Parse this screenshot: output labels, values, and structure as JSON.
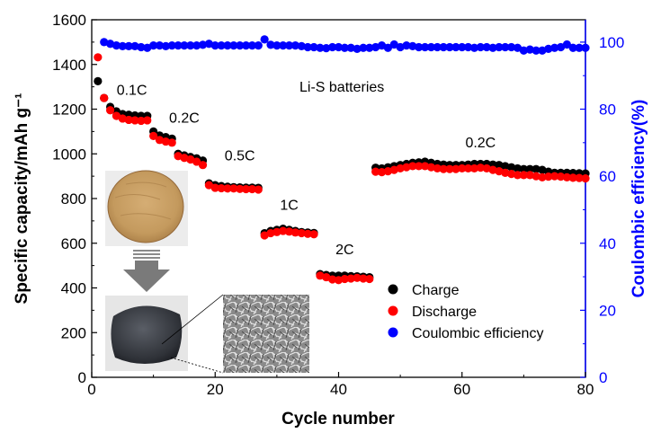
{
  "chart_data": {
    "type": "scatter",
    "title": "",
    "xlabel": "Cycle number",
    "ylabel_left": "Specific capacity/mAh g⁻¹",
    "ylabel_right": "Coulombic efficiency(%)",
    "xlim": [
      0,
      80
    ],
    "ylim_left": [
      0,
      1600
    ],
    "ylim_right": [
      0,
      106.67
    ],
    "x_ticks": [
      0,
      20,
      40,
      60,
      80
    ],
    "y_left_ticks": [
      0,
      200,
      400,
      600,
      800,
      1000,
      1200,
      1400,
      1600
    ],
    "y_right_ticks": [
      0,
      20,
      40,
      60,
      80,
      100
    ],
    "legend_position": "bottom-right",
    "annotations": {
      "system": "Li-S batteries",
      "rates": [
        {
          "label": "0.1C",
          "x": 6.5,
          "y": 1265
        },
        {
          "label": "0.2C",
          "x": 15,
          "y": 1140
        },
        {
          "label": "0.5C",
          "x": 24,
          "y": 970
        },
        {
          "label": "1C",
          "x": 32,
          "y": 750
        },
        {
          "label": "2C",
          "x": 41,
          "y": 550
        },
        {
          "label": "0.2C",
          "x": 63,
          "y": 1030
        }
      ]
    },
    "series": [
      {
        "name": "Charge",
        "color": "#000000",
        "axis": "left",
        "x": [
          1,
          2,
          3,
          4,
          5,
          6,
          7,
          8,
          9,
          10,
          11,
          12,
          13,
          14,
          15,
          16,
          17,
          18,
          19,
          20,
          21,
          22,
          23,
          24,
          25,
          26,
          27,
          28,
          29,
          30,
          31,
          32,
          33,
          34,
          35,
          36,
          37,
          38,
          39,
          40,
          41,
          42,
          43,
          44,
          45,
          46,
          47,
          48,
          49,
          50,
          51,
          52,
          53,
          54,
          55,
          56,
          57,
          58,
          59,
          60,
          61,
          62,
          63,
          64,
          65,
          66,
          67,
          68,
          69,
          70,
          71,
          72,
          73,
          74,
          75,
          76,
          77,
          78,
          79,
          80
        ],
        "y": [
          1325,
          1250,
          1210,
          1190,
          1178,
          1175,
          1172,
          1170,
          1170,
          1100,
          1082,
          1075,
          1068,
          1000,
          993,
          986,
          980,
          970,
          868,
          860,
          856,
          853,
          851,
          850,
          849,
          849,
          848,
          645,
          655,
          660,
          665,
          660,
          655,
          650,
          648,
          646,
          462,
          458,
          455,
          455,
          455,
          453,
          452,
          450,
          448,
          938,
          935,
          940,
          945,
          950,
          955,
          960,
          962,
          965,
          960,
          955,
          952,
          950,
          950,
          950,
          952,
          955,
          955,
          955,
          952,
          950,
          945,
          940,
          935,
          932,
          932,
          932,
          928,
          920,
          915,
          915,
          915,
          914,
          913,
          912
        ]
      },
      {
        "name": "Discharge",
        "color": "#ff0000",
        "axis": "left",
        "x": [
          1,
          2,
          3,
          4,
          5,
          6,
          7,
          8,
          9,
          10,
          11,
          12,
          13,
          14,
          15,
          16,
          17,
          18,
          19,
          20,
          21,
          22,
          23,
          24,
          25,
          26,
          27,
          28,
          29,
          30,
          31,
          32,
          33,
          34,
          35,
          36,
          37,
          38,
          39,
          40,
          41,
          42,
          43,
          44,
          45,
          46,
          47,
          48,
          49,
          50,
          51,
          52,
          53,
          54,
          55,
          56,
          57,
          58,
          59,
          60,
          61,
          62,
          63,
          64,
          65,
          66,
          67,
          68,
          69,
          70,
          71,
          72,
          73,
          74,
          75,
          76,
          77,
          78,
          79,
          80
        ],
        "y": [
          1432,
          1250,
          1195,
          1170,
          1158,
          1152,
          1150,
          1148,
          1150,
          1080,
          1062,
          1055,
          1050,
          990,
          982,
          975,
          965,
          950,
          860,
          848,
          846,
          845,
          845,
          843,
          842,
          842,
          840,
          635,
          645,
          650,
          655,
          652,
          648,
          645,
          642,
          640,
          455,
          448,
          438,
          435,
          440,
          442,
          445,
          442,
          440,
          920,
          918,
          922,
          928,
          935,
          940,
          945,
          945,
          945,
          940,
          935,
          932,
          932,
          932,
          935,
          935,
          935,
          938,
          935,
          928,
          922,
          915,
          910,
          905,
          905,
          905,
          900,
          895,
          898,
          900,
          898,
          895,
          893,
          892,
          890
        ]
      },
      {
        "name": "Coulombic efficiency",
        "color": "#0000ff",
        "axis": "right",
        "x": [
          2,
          3,
          4,
          5,
          6,
          7,
          8,
          9,
          10,
          11,
          12,
          13,
          14,
          15,
          16,
          17,
          18,
          19,
          20,
          21,
          22,
          23,
          24,
          25,
          26,
          27,
          28,
          29,
          30,
          31,
          32,
          33,
          34,
          35,
          36,
          37,
          38,
          39,
          40,
          41,
          42,
          43,
          44,
          45,
          46,
          47,
          48,
          49,
          50,
          51,
          52,
          53,
          54,
          55,
          56,
          57,
          58,
          59,
          60,
          61,
          62,
          63,
          64,
          65,
          66,
          67,
          68,
          69,
          70,
          71,
          72,
          73,
          74,
          75,
          76,
          77,
          78,
          79,
          80
        ],
        "y": [
          100.0,
          99.5,
          99.0,
          98.8,
          98.8,
          98.8,
          98.5,
          98.3,
          99.0,
          99.0,
          98.8,
          99.0,
          99.0,
          99.0,
          99.0,
          99.0,
          99.2,
          99.5,
          99.0,
          99.0,
          99.0,
          99.0,
          99.0,
          99.0,
          99.0,
          99.0,
          100.8,
          99.2,
          99.0,
          99.0,
          99.0,
          99.0,
          98.8,
          98.5,
          98.5,
          98.3,
          98.2,
          98.5,
          98.5,
          98.3,
          98.3,
          98.0,
          98.3,
          98.3,
          98.5,
          99.0,
          98.3,
          99.3,
          98.5,
          99.0,
          98.8,
          98.5,
          98.5,
          98.5,
          98.5,
          98.5,
          98.5,
          98.5,
          98.5,
          98.5,
          98.3,
          98.5,
          98.5,
          98.3,
          98.5,
          98.5,
          98.5,
          98.3,
          97.5,
          97.8,
          97.5,
          97.5,
          98.0,
          98.3,
          98.5,
          99.3,
          98.3,
          98.3,
          98.3
        ]
      }
    ]
  },
  "insets": {
    "note": "photographs of sample disks and SEM micrograph reproduced as drawings"
  }
}
